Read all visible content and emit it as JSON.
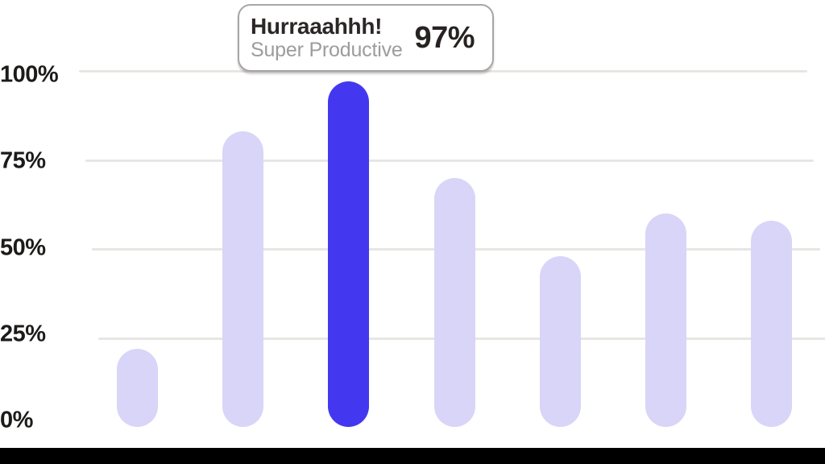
{
  "tooltip": {
    "title": "Hurraaahhh!",
    "subtitle": "Super Productive",
    "value": "97%"
  },
  "chart_data": {
    "type": "bar",
    "values": [
      22,
      83,
      97,
      70,
      48,
      60,
      58
    ],
    "highlighted_index": 2,
    "highlighted_point": {
      "value": 97,
      "tooltip_title": "Hurraaahhh!",
      "tooltip_subtitle": "Super Productive",
      "tooltip_value_label": "97%"
    },
    "yticks": [
      {
        "value": 100,
        "label": "100%"
      },
      {
        "value": 75,
        "label": "75%"
      },
      {
        "value": 50,
        "label": "50%"
      },
      {
        "value": 25,
        "label": "25%"
      },
      {
        "value": 0,
        "label": "0%"
      }
    ],
    "ylim": [
      0,
      100
    ],
    "title": "",
    "xlabel": "",
    "ylabel": "",
    "legend": "none",
    "grid": {
      "horizontal": true,
      "gridline_values": [
        100,
        75,
        50,
        25
      ]
    },
    "colors": {
      "bar": "#d8d5f8",
      "highlighted_bar": "#4338f0",
      "gridline": "#e8e6e2",
      "axis_text": "#1c1b1a",
      "tooltip_border": "#a9a5a5",
      "bottom_strip": "#000000"
    }
  }
}
